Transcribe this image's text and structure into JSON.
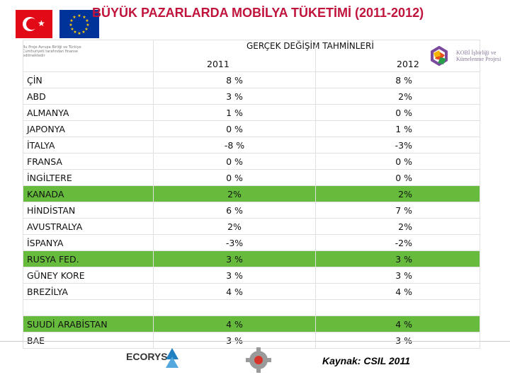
{
  "title": "BÜYÜK PAZARLARDA MOBİLYA TÜKETİMİ (2011-2012)",
  "table": {
    "header": "GERÇEK DEĞİŞİM TAHMİNLERİ",
    "year1": "2011",
    "year2": "2012",
    "rows": [
      {
        "country": "ÇİN",
        "v2011": "8 %",
        "v2012": "8 %",
        "highlight": false
      },
      {
        "country": "ABD",
        "v2011": "3 %",
        "v2012": "2%",
        "highlight": false
      },
      {
        "country": "ALMANYA",
        "v2011": "1 %",
        "v2012": "0 %",
        "highlight": false
      },
      {
        "country": "JAPONYA",
        "v2011": "0 %",
        "v2012": "1 %",
        "highlight": false
      },
      {
        "country": "İTALYA",
        "v2011": "-8 %",
        "v2012": "-3%",
        "highlight": false
      },
      {
        "country": "FRANSA",
        "v2011": "0 %",
        "v2012": "0 %",
        "highlight": false
      },
      {
        "country": "İNGİLTERE",
        "v2011": "0 %",
        "v2012": "0 %",
        "highlight": false
      },
      {
        "country": "KANADA",
        "v2011": "2%",
        "v2012": "2%",
        "highlight": true
      },
      {
        "country": "HİNDİSTAN",
        "v2011": "6 %",
        "v2012": "7 %",
        "highlight": false
      },
      {
        "country": "AVUSTRALYA",
        "v2011": "2%",
        "v2012": "2%",
        "highlight": false
      },
      {
        "country": "İSPANYA",
        "v2011": "-3%",
        "v2012": "-2%",
        "highlight": false
      },
      {
        "country": "RUSYA FED.",
        "v2011": "3 %",
        "v2012": "3 %",
        "highlight": true
      },
      {
        "country": "GÜNEY KORE",
        "v2011": "3 %",
        "v2012": "3 %",
        "highlight": false
      },
      {
        "country": "BREZİLYA",
        "v2011": "4 %",
        "v2012": "4 %",
        "highlight": false
      },
      {
        "country": "",
        "v2011": "",
        "v2012": "",
        "highlight": false
      },
      {
        "country": "SUUDİ ARABİSTAN",
        "v2011": "4 %",
        "v2012": "4 %",
        "highlight": true
      },
      {
        "country": "BAE",
        "v2011": "3 %",
        "v2012": "3 %",
        "highlight": false
      }
    ]
  },
  "logos": {
    "project_text": "Bu Proje Avrupa Birliği ve Türkiye Cumhuriyeti tarafından finanse edilmektedir",
    "kobi_text": "KOBİ İşbirliği ve Kümelenme Projesi",
    "ecorys": "ECORYS"
  },
  "source": "Kaynak: CSIL 2011",
  "colors": {
    "title": "#c0143c",
    "highlight": "#66bb3c"
  }
}
